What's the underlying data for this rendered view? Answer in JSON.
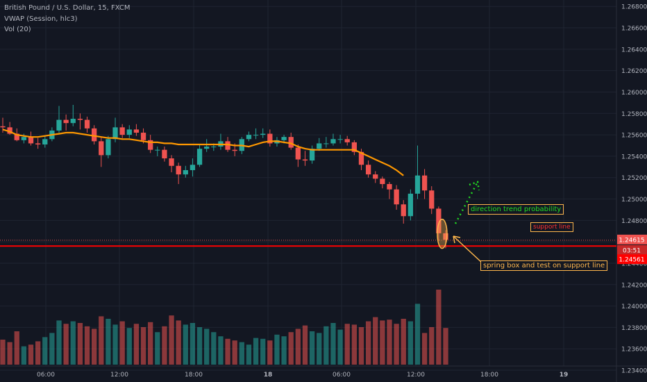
{
  "legend": {
    "title": "British Pound / U.S. Dollar, 15, FXCM",
    "vwap": "VWAP (Session, hlc3)",
    "vol": "Vol (20)"
  },
  "annotations": {
    "trend": "direction trend probability",
    "support": "support line",
    "spring": "spring box and test on support line"
  },
  "price_tags": {
    "current": "1.24615",
    "countdown": "03:51",
    "support": "1.24561"
  },
  "colors": {
    "background": "#131722",
    "up": "#26a69a",
    "down": "#ef5350",
    "vwap": "#ff9800",
    "support": "#ff0000",
    "trend": "#22dd22",
    "spring": "#ffb74d"
  },
  "chart_data": {
    "type": "candlestick",
    "title": "British Pound / U.S. Dollar, 15, FXCM",
    "y_ticks": [
      "1.26800",
      "1.26600",
      "1.26400",
      "1.26200",
      "1.26000",
      "1.25800",
      "1.25600",
      "1.25400",
      "1.25200",
      "1.25000",
      "1.24800",
      "1.24600",
      "1.24400",
      "1.24200",
      "1.24000",
      "1.23800",
      "1.23600",
      "1.23400"
    ],
    "x_ticks": [
      "06:00",
      "12:00",
      "18:00",
      "18",
      "06:00",
      "12:00",
      "18:00",
      "19"
    ],
    "ylim": [
      1.2329,
      1.2686
    ],
    "price": {
      "open": [
        1.2568,
        1.2567,
        1.2561,
        1.2555,
        1.2558,
        1.2552,
        1.2551,
        1.2556,
        1.2564,
        1.2574,
        1.2571,
        1.2575,
        1.2574,
        1.2566,
        1.2554,
        1.2541,
        1.2556,
        1.2567,
        1.256,
        1.2565,
        1.2562,
        1.2555,
        1.2546,
        1.2546,
        1.2538,
        1.2531,
        1.2523,
        1.2527,
        1.2532,
        1.2547,
        1.2549,
        1.2549,
        1.2554,
        1.2546,
        1.2545,
        1.2556,
        1.256,
        1.256,
        1.2561,
        1.2552,
        1.2555,
        1.2558,
        1.2548,
        1.2537,
        1.2536,
        1.2547,
        1.2552,
        1.2552,
        1.2556,
        1.2556,
        1.2553,
        1.2544,
        1.2532,
        1.2523,
        1.2519,
        1.2514,
        1.2509,
        1.2495,
        1.2484,
        1.2505,
        1.2522,
        1.2508,
        1.2491,
        1.2468
      ],
      "close": [
        1.2567,
        1.2561,
        1.2555,
        1.2558,
        1.2552,
        1.2551,
        1.2556,
        1.2564,
        1.2574,
        1.2571,
        1.2575,
        1.2574,
        1.2566,
        1.2554,
        1.2541,
        1.2556,
        1.2567,
        1.256,
        1.2565,
        1.2562,
        1.2555,
        1.2546,
        1.2546,
        1.2538,
        1.2531,
        1.2523,
        1.2527,
        1.2532,
        1.2547,
        1.2549,
        1.2549,
        1.2554,
        1.2546,
        1.2545,
        1.2556,
        1.256,
        1.256,
        1.2561,
        1.2552,
        1.2555,
        1.2558,
        1.2548,
        1.2537,
        1.2536,
        1.2547,
        1.2552,
        1.2552,
        1.2556,
        1.2556,
        1.2553,
        1.2544,
        1.2532,
        1.2523,
        1.2519,
        1.2514,
        1.2509,
        1.2495,
        1.2484,
        1.2505,
        1.2522,
        1.2508,
        1.2491,
        1.2468,
        1.2462
      ],
      "high": [
        1.2576,
        1.2572,
        1.2566,
        1.2561,
        1.2563,
        1.2557,
        1.2559,
        1.2567,
        1.2587,
        1.2579,
        1.2588,
        1.258,
        1.2577,
        1.2569,
        1.2558,
        1.2559,
        1.2576,
        1.257,
        1.2569,
        1.257,
        1.2566,
        1.256,
        1.2549,
        1.2549,
        1.2541,
        1.2534,
        1.2531,
        1.2538,
        1.2551,
        1.2556,
        1.2552,
        1.2561,
        1.2558,
        1.2552,
        1.2558,
        1.2563,
        1.2566,
        1.2566,
        1.2565,
        1.2558,
        1.256,
        1.2562,
        1.2551,
        1.2545,
        1.255,
        1.2557,
        1.2558,
        1.2561,
        1.256,
        1.2559,
        1.2555,
        1.2547,
        1.2536,
        1.2526,
        1.2521,
        1.2516,
        1.2513,
        1.2499,
        1.2509,
        1.255,
        1.2528,
        1.2512,
        1.2493,
        1.2471
      ],
      "low": [
        1.2562,
        1.256,
        1.2554,
        1.2552,
        1.255,
        1.2547,
        1.2548,
        1.2554,
        1.2562,
        1.2564,
        1.2568,
        1.2565,
        1.2562,
        1.2551,
        1.253,
        1.2538,
        1.2553,
        1.2557,
        1.2557,
        1.2559,
        1.2552,
        1.2543,
        1.254,
        1.2535,
        1.2525,
        1.2514,
        1.252,
        1.2521,
        1.253,
        1.2544,
        1.2545,
        1.2546,
        1.2544,
        1.254,
        1.2542,
        1.2554,
        1.2556,
        1.2557,
        1.2549,
        1.2549,
        1.2552,
        1.2546,
        1.253,
        1.2531,
        1.2533,
        1.2545,
        1.2548,
        1.255,
        1.2552,
        1.255,
        1.2541,
        1.2527,
        1.252,
        1.2515,
        1.251,
        1.25,
        1.249,
        1.2477,
        1.248,
        1.25,
        1.25,
        1.2486,
        1.2461,
        1.2454
      ]
    },
    "vwap": [
      1.2565,
      1.2563,
      1.256,
      1.2559,
      1.2558,
      1.2558,
      1.2559,
      1.256,
      1.2561,
      1.2562,
      1.2562,
      1.2561,
      1.256,
      1.2559,
      1.2558,
      1.2557,
      1.2557,
      1.2556,
      1.2556,
      1.2555,
      1.2554,
      1.2553,
      1.2553,
      1.2552,
      1.2552,
      1.2551,
      1.2551,
      1.2551,
      1.2551,
      1.2551,
      1.2551,
      1.2551,
      1.2551,
      1.255,
      1.255,
      1.2549,
      1.2551,
      1.2553,
      1.2554,
      1.2554,
      1.2553,
      1.2552,
      1.2549,
      1.2547,
      1.2546,
      1.2546,
      1.2546,
      1.2546,
      1.2546,
      1.2546,
      1.2546,
      1.2543,
      1.254,
      1.2537,
      1.2534,
      1.2531,
      1.2527,
      1.2522
    ],
    "volume": [
      30,
      27,
      40,
      22,
      24,
      28,
      33,
      38,
      53,
      49,
      52,
      50,
      46,
      43,
      58,
      55,
      48,
      52,
      44,
      49,
      45,
      51,
      39,
      46,
      59,
      53,
      48,
      50,
      45,
      43,
      39,
      34,
      31,
      29,
      27,
      24,
      32,
      31,
      29,
      36,
      34,
      39,
      43,
      47,
      40,
      38,
      46,
      50,
      42,
      49,
      48,
      45,
      52,
      57,
      53,
      54,
      49,
      55,
      52,
      73,
      38,
      45,
      90,
      44
    ],
    "support_level": 1.24561,
    "current_price": 1.24615
  }
}
